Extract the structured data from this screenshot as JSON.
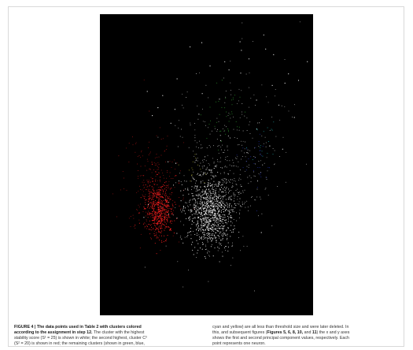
{
  "figure": {
    "background": "#000000",
    "cluster_colors": {
      "highest_stability": "#ffffff",
      "second_highest": "#ff2020",
      "small_green": "#33aa33",
      "small_blue": "#2233bb",
      "small_cyan": "#22bbbb",
      "small_yellow": "#cccc33"
    }
  },
  "caption": {
    "left": {
      "line1_bold": "FIGURE 4 | The data points used in Table 2 with clusters colored",
      "line2_bold": "according to the assignment in step 12.",
      "line2_rest": " The cluster with the highest",
      "line3": "stability score (S¹ = 25) is shown in white; the second highest, cluster C²",
      "line4": "(S² = 20) is shown in red; the remaining clusters (shown in green, blue,"
    },
    "right": {
      "line1": "cyan and yellow) are all less than threshold size and were later deleted. In",
      "line2_a": "this, and subsequent figures (",
      "line2_refs": "Figures 5, 6, 8, 10,",
      "line2_and": " and ",
      "line2_ref_last": "11",
      "line2_b": ") the x and y axes",
      "line3": "shows the first and second principal component values, respectively. Each",
      "line4": "point represents one neuron."
    }
  }
}
